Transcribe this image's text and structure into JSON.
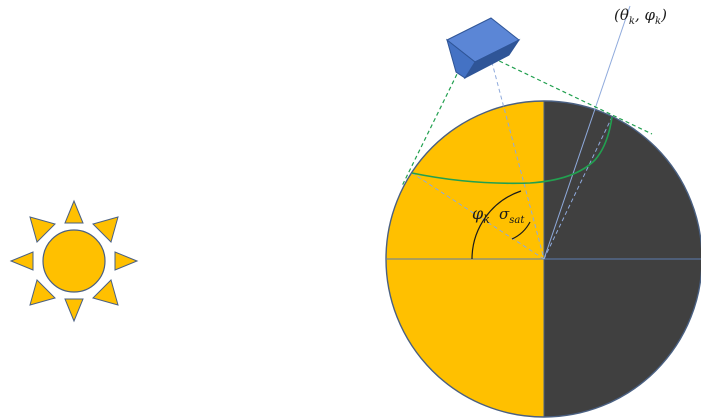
{
  "labels": {
    "direction": "(θk, φk)",
    "direction_parts": {
      "open": "(θ",
      "sub1": "k",
      "comma": ", φ",
      "sub2": "k",
      "close": ")"
    },
    "phi": {
      "main": "φ",
      "sub": "k"
    },
    "sigma": {
      "main": "σ",
      "sub": "sat"
    }
  },
  "colors": {
    "day_side": "#FFC000",
    "night_side": "#404040",
    "sun": "#FFC000",
    "outline": "#4A6082",
    "satellite_front": "#4472C4",
    "satellite_top": "#5B86D6",
    "satellite_side": "#2F5597",
    "fov": "#22A050",
    "guide": "#8FAADC"
  },
  "icons": {
    "sun": "sun-icon",
    "satellite": "satellite-icon"
  }
}
